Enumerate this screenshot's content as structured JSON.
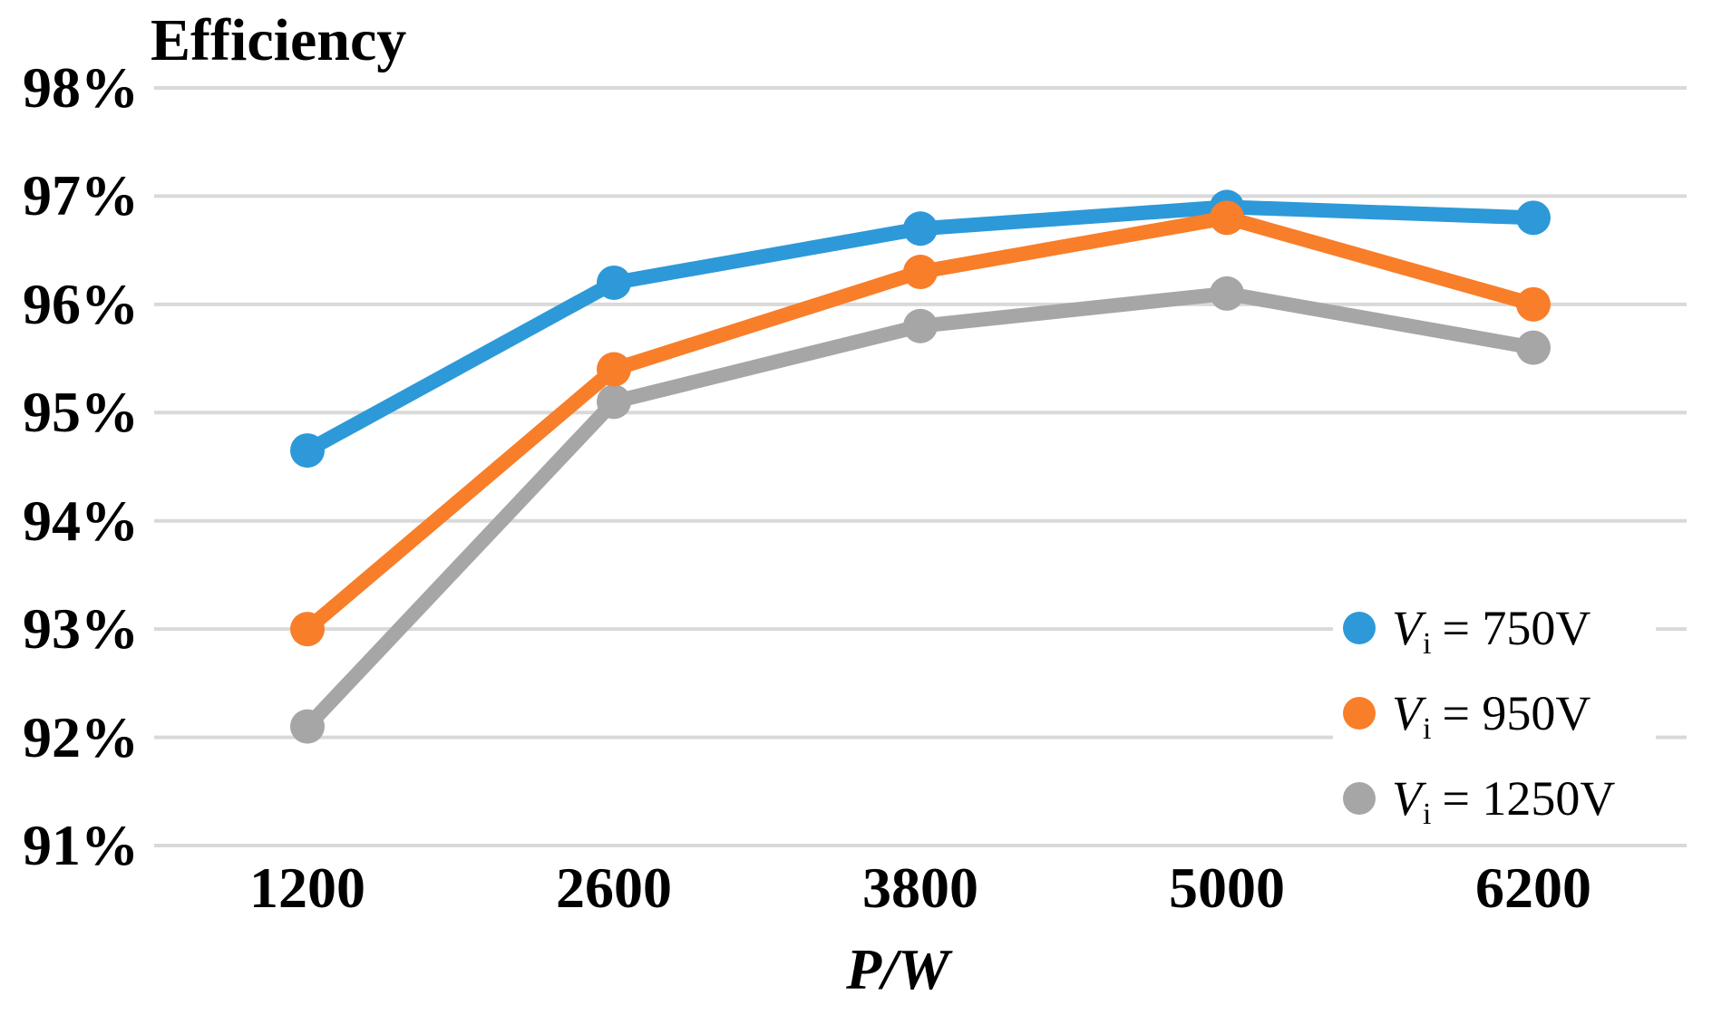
{
  "chart_data": {
    "type": "line",
    "title": "Efficiency",
    "x_axis": {
      "title_var": "P",
      "title_rest": "/W",
      "categories": [
        "1200",
        "2600",
        "3800",
        "5000",
        "6200"
      ]
    },
    "y_axis": {
      "unit": "percent",
      "min": 91,
      "max": 98,
      "tick_values": [
        98,
        97,
        96,
        95,
        94,
        93,
        92,
        91
      ],
      "tick_labels": [
        "98%",
        "97%",
        "96%",
        "95%",
        "94%",
        "93%",
        "92%",
        "91%"
      ]
    },
    "grid": true,
    "legend_position": "inside-right",
    "series": [
      {
        "name": "Vi = 750V",
        "legend_sym": "V",
        "legend_sub": "i",
        "legend_val": "= 750V",
        "color": "#2D99D8",
        "values": [
          94.65,
          96.2,
          96.7,
          96.9,
          96.8
        ]
      },
      {
        "name": "Vi = 950V",
        "legend_sym": "V",
        "legend_sub": "i",
        "legend_val": "= 950V",
        "color": "#F87E2A",
        "values": [
          93.0,
          95.4,
          96.3,
          96.8,
          96.0
        ]
      },
      {
        "name": "Vi = 1250V",
        "legend_sym": "V",
        "legend_sub": "i",
        "legend_val": "= 1250V",
        "color": "#A6A6A6",
        "values": [
          92.1,
          95.1,
          95.8,
          96.1,
          95.6
        ]
      }
    ],
    "colors": {
      "gridline": "#D9D9D9",
      "background": "#FFFFFF",
      "text": "#000000"
    }
  }
}
